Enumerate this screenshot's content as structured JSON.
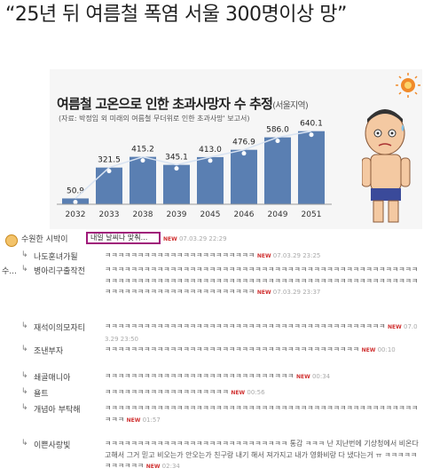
{
  "headline": "“25년 뒤 여름철 폭염 서울 300명이상 망”",
  "chart_data": {
    "type": "bar",
    "title": "여름철 고온으로 인한 초과사망자 수 추정",
    "subtitle": "(서울지역)",
    "source": "(자료: 박정임 외 미래의 여름철 무더위로 인한 초과사망' 보고서)",
    "categories": [
      "2032",
      "2033",
      "2038",
      "2039",
      "2045",
      "2046",
      "2049",
      "2051"
    ],
    "values": [
      50.9,
      321.5,
      415.2,
      345.1,
      413.0,
      476.9,
      586.0,
      640.1
    ],
    "value_labels": [
      "50.9",
      "321.5",
      "415.2",
      "345.1",
      "413.0",
      "476.9",
      "586.0",
      "640.1"
    ],
    "ylim": [
      0,
      700
    ],
    "bar_color": "#5a7fb2"
  },
  "colors": {
    "highlight": "#a0197a",
    "new_badge": "#d03030"
  },
  "comments": [
    {
      "nick": "수원한 시박이",
      "text": "내일 날씨나 맞춰...",
      "new": "NEW",
      "date": "07.03.29 22:29",
      "icon": "sun-face-icon"
    },
    {
      "nick": "나도훈녀가될",
      "text": "ㅋㅋㅋㅋㅋㅋㅋㅋㅋㅋㅋㅋㅋㅋㅋㅋㅋㅋㅋㅋㅋㅋㅋ",
      "new": "NEW",
      "date": "07.03.29 23:25"
    },
    {
      "nick": "병아리구출작전",
      "text": "ㅋㅋㅋㅋㅋㅋㅋㅋㅋㅋㅋㅋㅋㅋㅋㅋㅋㅋㅋㅋㅋㅋㅋㅋㅋㅋㅋㅋㅋㅋㅋㅋㅋㅋㅋㅋㅋㅋㅋㅋㅋㅋㅋㅋㅋㅋㅋㅋㅋㅋㅋㅋㅋㅋㅋㅋㅋㅋㅋㅋㅋㅋㅋㅋㅋㅋㅋㅋㅋㅋㅋㅋㅋㅋㅋㅋㅋㅋㅋㅋㅋㅋㅋㅋㅋㅋㅋㅋㅋㅋㅋㅋㅋㅋㅋㅋㅋㅋㅋㅋㅋㅋㅋㅋㅋㅋㅋㅋㅋㅋㅋㅋㅋㅋㅋㅋㅋㅋㅋ",
      "new": "NEW",
      "date": "07.03.29 23:37",
      "side": "수..."
    },
    {
      "nick": "재석이의모자티",
      "text": "ㅋㅋㅋㅋㅋㅋㅋㅋㅋㅋㅋㅋㅋㅋㅋㅋㅋㅋㅋㅋㅋㅋㅋㅋㅋㅋㅋㅋㅋㅋㅋㅋㅋㅋㅋㅋㅋㅋㅋㅋㅋㅋㅋ",
      "new": "NEW",
      "date": "07.03.29 23:50"
    },
    {
      "nick": "조낸부자",
      "text": "ㅋㅋㅋㅋㅋㅋㅋㅋㅋㅋㅋㅋㅋㅋㅋㅋㅋㅋㅋㅋㅋㅋㅋㅋㅋㅋㅋㅋㅋㅋㅋㅋㅋㅋㅋㅋㅋㅋㅋ",
      "new": "NEW",
      "date": "00:10"
    },
    {
      "nick": "쇄골매니아",
      "text": "ㅋㅋㅋㅋㅋㅋㅋㅋㅋㅋㅋㅋㅋㅋㅋㅋㅋㅋㅋㅋㅋㅋㅋㅋㅋㅋㅋㅋㅋ",
      "new": "NEW",
      "date": "00:34"
    },
    {
      "nick": "욜트",
      "text": "ㅋㅋㅋㅋㅋㅋㅋㅋㅋㅋㅋㅋㅋㅋㅋㅋㅋㅋㅋ",
      "new": "NEW",
      "date": "00:56"
    },
    {
      "nick": "개념아 부탁해",
      "text": "ㅋㅋㅋㅋㅋㅋㅋㅋㅋㅋㅋㅋㅋㅋㅋㅋㅋㅋㅋㅋㅋㅋㅋㅋㅋㅋㅋㅋㅋㅋㅋㅋㅋㅋㅋㅋㅋㅋㅋㅋㅋㅋㅋㅋㅋㅋㅋㅋㅋㅋㅋ",
      "new": "NEW",
      "date": "01:57"
    },
    {
      "nick": "이쁜사랑빛",
      "text": "ㅋㅋㅋㅋㅋㅋㅋㅋㅋㅋㅋㅋㅋㅋㅋㅋㅋㅋㅋㅋㅋㅋㅋㅋㅋㅋㅋㅋ 통감 ㅋㅋㅋ 난 지난번에 기상청에서 비온다고해서 그거 믿고 비오는가 안오는가 친구랑 내기 해서 져가지고 내가 영화비랑 다 냈다는거 ㅠ ㅋㅋㅋㅋㅋㅋㅋㅋㅋㅋㅋ",
      "new": "NEW",
      "date": "02:34"
    }
  ]
}
